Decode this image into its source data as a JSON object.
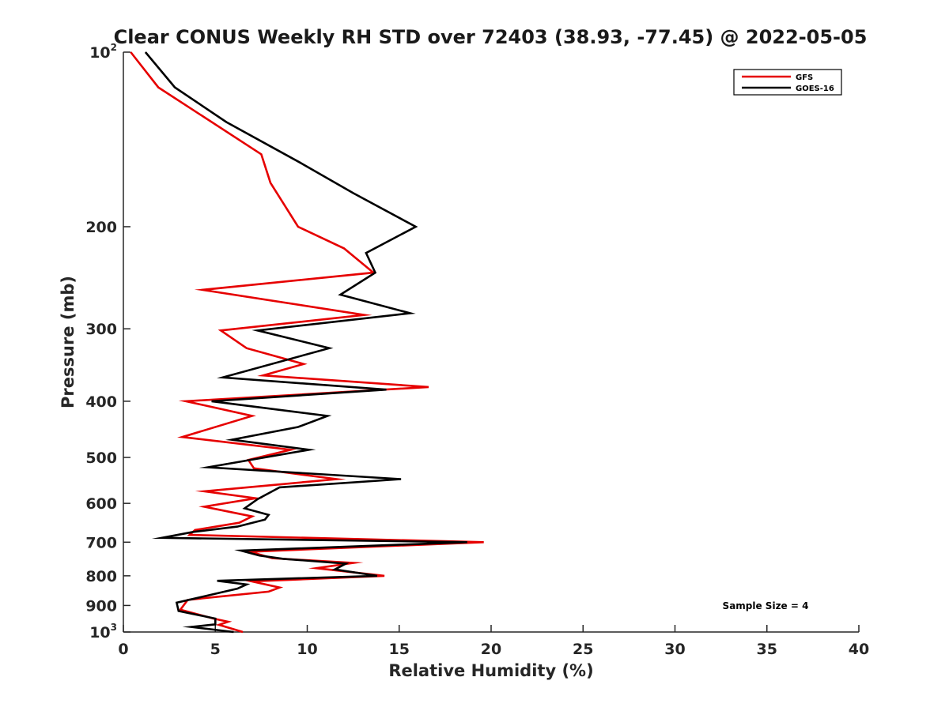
{
  "chart_data": {
    "type": "line",
    "title": "Clear CONUS Weekly RH STD over 72403 (38.93, -77.45) @ 2022-05-05",
    "xlabel": "Relative Humidity (%)",
    "ylabel": "Pressure (mb)",
    "xlim": [
      0,
      40
    ],
    "ylim": [
      100,
      1000
    ],
    "y_scale": "log",
    "y_reversed": true,
    "x_ticks": [
      "0",
      "5",
      "10",
      "15",
      "20",
      "25",
      "30",
      "35",
      "40"
    ],
    "x_tick_values": [
      0,
      5,
      10,
      15,
      20,
      25,
      30,
      35,
      40
    ],
    "y_ticks": [
      {
        "value": 100,
        "base": "10",
        "exp": "2"
      },
      {
        "value": 200,
        "base": "200",
        "exp": ""
      },
      {
        "value": 300,
        "base": "300",
        "exp": ""
      },
      {
        "value": 400,
        "base": "400",
        "exp": ""
      },
      {
        "value": 500,
        "base": "500",
        "exp": ""
      },
      {
        "value": 600,
        "base": "600",
        "exp": ""
      },
      {
        "value": 700,
        "base": "700",
        "exp": ""
      },
      {
        "value": 800,
        "base": "800",
        "exp": ""
      },
      {
        "value": 900,
        "base": "900",
        "exp": ""
      },
      {
        "value": 1000,
        "base": "10",
        "exp": "3"
      }
    ],
    "grid": false,
    "legend_position": "top-right",
    "annotation": "Sample Size = 4",
    "series": [
      {
        "name": "GFS",
        "color": "#e60000",
        "points": [
          [
            0.4,
            100
          ],
          [
            1.9,
            115
          ],
          [
            7.5,
            150
          ],
          [
            8.0,
            168
          ],
          [
            9.5,
            200
          ],
          [
            12.0,
            218
          ],
          [
            13.6,
            240
          ],
          [
            4.3,
            257
          ],
          [
            13.1,
            284
          ],
          [
            5.3,
            302
          ],
          [
            6.7,
            324
          ],
          [
            9.8,
            345
          ],
          [
            7.6,
            361
          ],
          [
            16.6,
            378
          ],
          [
            3.4,
            400
          ],
          [
            7.0,
            424
          ],
          [
            3.2,
            461
          ],
          [
            9.1,
            485
          ],
          [
            6.8,
            505
          ],
          [
            7.1,
            522
          ],
          [
            11.6,
            545
          ],
          [
            4.4,
            572
          ],
          [
            7.2,
            588
          ],
          [
            4.4,
            608
          ],
          [
            7.0,
            632
          ],
          [
            6.3,
            648
          ],
          [
            3.9,
            667
          ],
          [
            3.6,
            680
          ],
          [
            19.6,
            700
          ],
          [
            6.9,
            727
          ],
          [
            8.1,
            746
          ],
          [
            12.5,
            760
          ],
          [
            10.5,
            776
          ],
          [
            14.2,
            800
          ],
          [
            7.0,
            818
          ],
          [
            8.5,
            838
          ],
          [
            7.9,
            852
          ],
          [
            3.5,
            880
          ],
          [
            3.1,
            915
          ],
          [
            4.9,
            948
          ],
          [
            5.7,
            960
          ],
          [
            5.2,
            972
          ],
          [
            6.5,
            1000
          ]
        ]
      },
      {
        "name": "GOES-16",
        "color": "#000000",
        "points": [
          [
            1.2,
            100
          ],
          [
            2.8,
            115
          ],
          [
            5.6,
            132
          ],
          [
            9.6,
            155
          ],
          [
            12.5,
            175
          ],
          [
            15.9,
            200
          ],
          [
            13.2,
            222
          ],
          [
            13.7,
            240
          ],
          [
            11.8,
            262
          ],
          [
            15.6,
            282
          ],
          [
            7.3,
            302
          ],
          [
            11.2,
            324
          ],
          [
            5.4,
            364
          ],
          [
            14.3,
            382
          ],
          [
            4.8,
            400
          ],
          [
            11.1,
            424
          ],
          [
            9.5,
            443
          ],
          [
            5.9,
            466
          ],
          [
            10.1,
            485
          ],
          [
            4.6,
            520
          ],
          [
            15.1,
            545
          ],
          [
            8.5,
            563
          ],
          [
            7.3,
            590
          ],
          [
            6.6,
            612
          ],
          [
            7.9,
            628
          ],
          [
            7.7,
            640
          ],
          [
            6.2,
            658
          ],
          [
            3.8,
            672
          ],
          [
            2.1,
            688
          ],
          [
            18.7,
            700
          ],
          [
            6.4,
            724
          ],
          [
            7.4,
            738
          ],
          [
            8.7,
            748
          ],
          [
            12.1,
            762
          ],
          [
            11.5,
            780
          ],
          [
            13.8,
            800
          ],
          [
            5.1,
            816
          ],
          [
            6.7,
            828
          ],
          [
            6.2,
            842
          ],
          [
            2.9,
            890
          ],
          [
            3.0,
            920
          ],
          [
            5.0,
            948
          ],
          [
            5.0,
            970
          ],
          [
            3.7,
            980
          ],
          [
            6.0,
            1000
          ]
        ]
      }
    ]
  }
}
